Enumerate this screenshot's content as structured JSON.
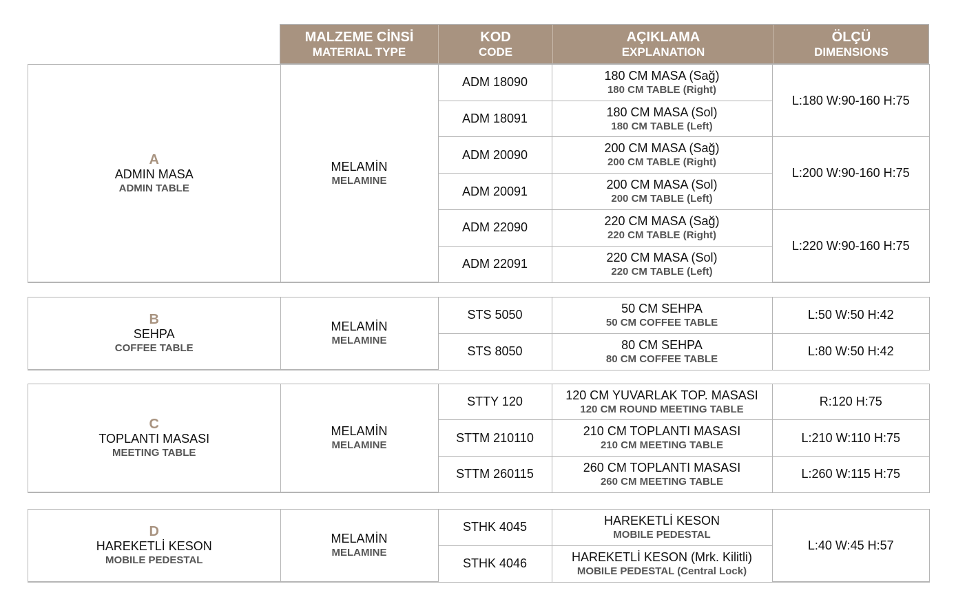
{
  "header": {
    "material": {
      "tr": "MALZEME CİNSİ",
      "en": "MATERIAL TYPE"
    },
    "code": {
      "tr": "KOD",
      "en": "CODE"
    },
    "explanation": {
      "tr": "AÇIKLAMA",
      "en": "EXPLANATION"
    },
    "dimensions": {
      "tr": "ÖLÇÜ",
      "en": "DIMENSIONS"
    }
  },
  "accent_color": "#a89380",
  "sections": [
    {
      "letter": "A",
      "name_tr": "ADMIN MASA",
      "name_en": "ADMIN TABLE",
      "material_tr": "MELAMİN",
      "material_en": "MELAMINE",
      "rows": [
        {
          "code": "ADM 18090",
          "desc_tr": "180 CM MASA (Sağ)",
          "desc_en": "180 CM TABLE (Right)",
          "dim": "L:180 W:90-160 H:75",
          "span": 2
        },
        {
          "code": "ADM 18091",
          "desc_tr": "180 CM MASA (Sol)",
          "desc_en": "180 CM TABLE (Left)"
        },
        {
          "code": "ADM 20090",
          "desc_tr": "200 CM MASA (Sağ)",
          "desc_en": "200 CM TABLE (Right)",
          "dim": "L:200 W:90-160 H:75",
          "span": 2
        },
        {
          "code": "ADM 20091",
          "desc_tr": "200 CM MASA (Sol)",
          "desc_en": "200 CM TABLE (Left)"
        },
        {
          "code": "ADM 22090",
          "desc_tr": "220 CM MASA (Sağ)",
          "desc_en": "220 CM TABLE (Right)",
          "dim": "L:220 W:90-160 H:75",
          "span": 2
        },
        {
          "code": "ADM 22091",
          "desc_tr": "220 CM MASA (Sol)",
          "desc_en": "220 CM TABLE (Left)"
        }
      ]
    },
    {
      "letter": "B",
      "name_tr": "SEHPA",
      "name_en": "COFFEE TABLE",
      "material_tr": "MELAMİN",
      "material_en": "MELAMINE",
      "rows": [
        {
          "code": "STS 5050",
          "desc_tr": "50 CM SEHPA",
          "desc_en": "50 CM COFFEE TABLE",
          "dim": "L:50 W:50 H:42",
          "span": 1
        },
        {
          "code": "STS 8050",
          "desc_tr": "80 CM SEHPA",
          "desc_en": "80 CM COFFEE TABLE",
          "dim": "L:80 W:50 H:42",
          "span": 1
        }
      ]
    },
    {
      "letter": "C",
      "name_tr": "TOPLANTI MASASI",
      "name_en": "MEETING TABLE",
      "material_tr": "MELAMİN",
      "material_en": "MELAMINE",
      "rows": [
        {
          "code": "STTY 120",
          "desc_tr": "120 CM  YUVARLAK TOP. MASASI",
          "desc_en": "120 CM ROUND MEETING TABLE",
          "dim": "R:120 H:75",
          "span": 1
        },
        {
          "code": "STTM 210110",
          "desc_tr": "210 CM TOPLANTI MASASI",
          "desc_en": "210 CM MEETING TABLE",
          "dim": "L:210 W:110 H:75",
          "span": 1
        },
        {
          "code": "STTM 260115",
          "desc_tr": "260 CM TOPLANTI MASASI",
          "desc_en": "260 CM MEETING TABLE",
          "dim": "L:260 W:115 H:75",
          "span": 1
        }
      ]
    },
    {
      "letter": "D",
      "name_tr": "HAREKETLİ KESON",
      "name_en": "MOBILE PEDESTAL",
      "material_tr": "MELAMİN",
      "material_en": "MELAMINE",
      "rows": [
        {
          "code": "STHK 4045",
          "desc_tr": "HAREKETLİ KESON",
          "desc_en": "MOBILE PEDESTAL",
          "dim": "L:40 W:45 H:57",
          "span": 2
        },
        {
          "code": "STHK 4046",
          "desc_tr": "HAREKETLİ KESON (Mrk. Kilitli)",
          "desc_en": "MOBILE PEDESTAL (Central Lock)"
        }
      ]
    }
  ]
}
